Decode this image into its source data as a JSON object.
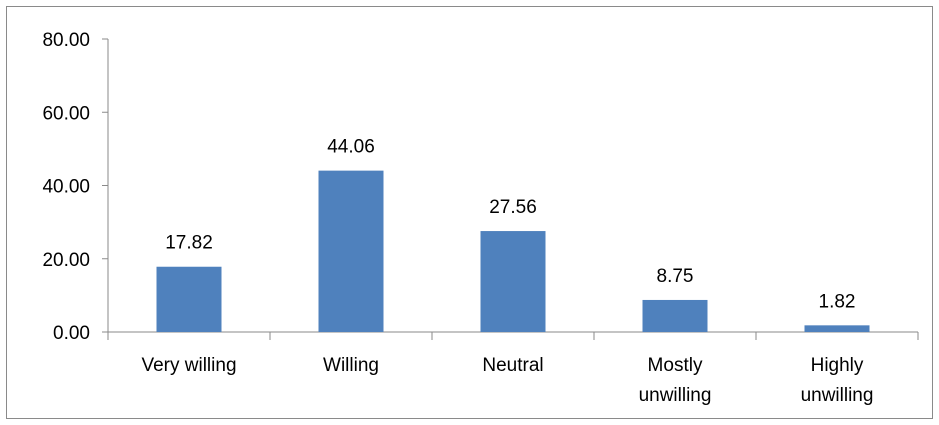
{
  "chart_data": {
    "type": "bar",
    "categories": [
      [
        "Very willing"
      ],
      [
        "Willing"
      ],
      [
        "Neutral"
      ],
      [
        "Mostly",
        "unwilling"
      ],
      [
        "Highly",
        "unwilling"
      ]
    ],
    "values": [
      17.82,
      44.06,
      27.56,
      8.75,
      1.82
    ],
    "value_labels": [
      "17.82",
      "44.06",
      "27.56",
      "8.75",
      "1.82"
    ],
    "ylim": [
      0,
      80
    ],
    "yticks": [
      0,
      20,
      40,
      60,
      80
    ],
    "ytick_labels": [
      "0.00",
      "20.00",
      "40.00",
      "60.00",
      "80.00"
    ],
    "grid": false,
    "bar_color": "#4f81bd",
    "title": "",
    "xlabel": "",
    "ylabel": ""
  }
}
